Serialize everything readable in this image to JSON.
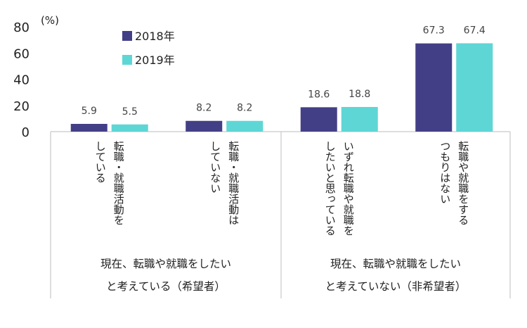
{
  "chart_data": {
    "type": "bar",
    "unit_label": "(%)",
    "y_ticks": [
      "80",
      "60",
      "40",
      "20",
      "0"
    ],
    "ylim": [
      0,
      80
    ],
    "legend_position": "top-left",
    "series": [
      {
        "name": "2018年",
        "color": "#433f86",
        "values": [
          5.9,
          8.2,
          18.6,
          67.3
        ],
        "labels": [
          "5.9",
          "8.2",
          "18.6",
          "67.3"
        ]
      },
      {
        "name": "2019年",
        "color": "#5ed6d6",
        "values": [
          5.5,
          8.2,
          18.8,
          67.4
        ],
        "labels": [
          "5.5",
          "8.2",
          "18.8",
          "67.4"
        ]
      }
    ],
    "categories": [
      {
        "lines": [
          "転職・就職活動を",
          "している"
        ]
      },
      {
        "lines": [
          "転職・就職活動は",
          "していない"
        ]
      },
      {
        "lines": [
          "いずれ転職や就職を",
          "したいと思っている"
        ]
      },
      {
        "lines": [
          "転職や就職をする",
          "つもりはない"
        ]
      }
    ],
    "groups": [
      {
        "lines": [
          "現在、転職や就職をしたい",
          "と考えている（希望者）"
        ]
      },
      {
        "lines": [
          "現在、転職や就職をしたい",
          "と考えていない（非希望者）"
        ]
      }
    ]
  }
}
